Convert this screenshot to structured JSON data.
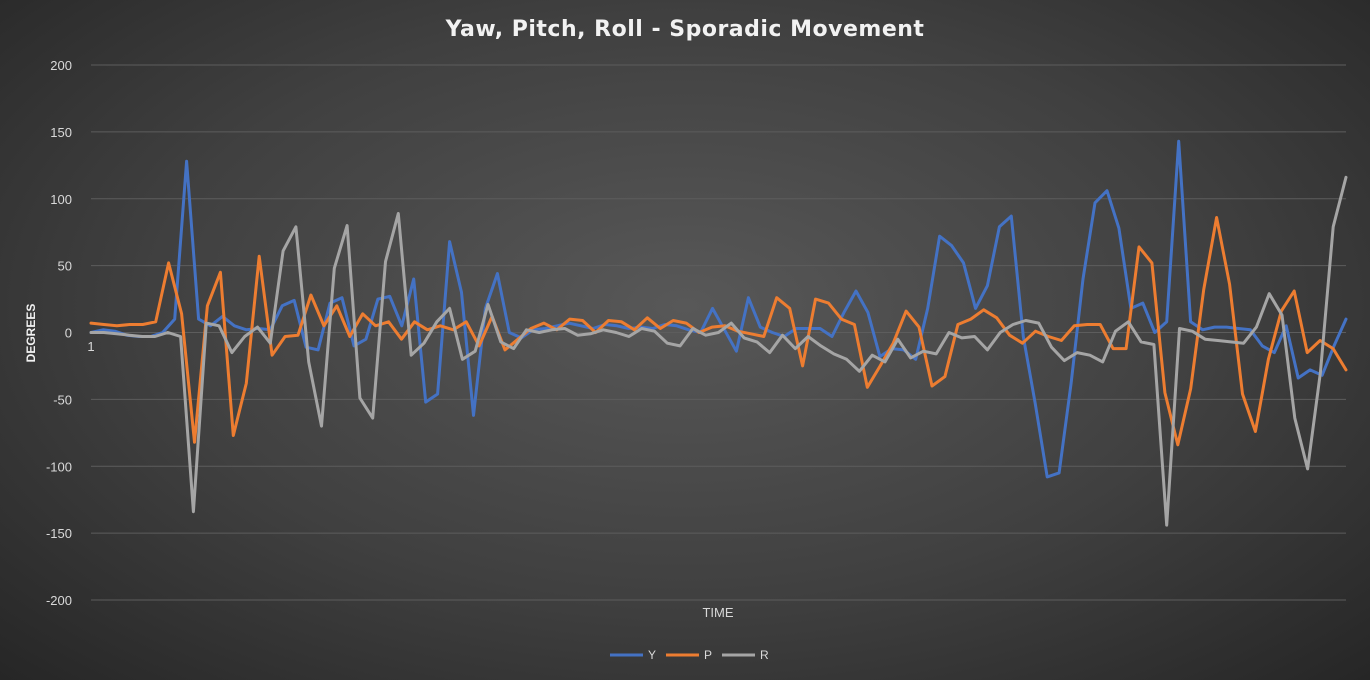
{
  "chart_data": {
    "type": "line",
    "title": "Yaw, Pitch, Roll - Sporadic Movement",
    "xlabel": "TIME",
    "ylabel": "DEGREES",
    "ylim": [
      -200,
      200
    ],
    "yticks": [
      200,
      150,
      100,
      50,
      0,
      -50,
      -100,
      -150,
      -200
    ],
    "x_tick_label": "1",
    "grid": true,
    "legend_position": "bottom",
    "series": [
      {
        "name": "Y",
        "color": "#4472c4",
        "values": [
          0,
          2,
          1,
          -2,
          -3,
          -3,
          0,
          10,
          128,
          10,
          5,
          12,
          5,
          2,
          3,
          2,
          20,
          24,
          -11,
          -13,
          22,
          26,
          -10,
          -5,
          25,
          27,
          5,
          40,
          -52,
          -46,
          68,
          30,
          -62,
          18,
          44,
          0,
          -4,
          2,
          3,
          5,
          7,
          5,
          3,
          6,
          5,
          3,
          4,
          3,
          6,
          5,
          2,
          0,
          18,
          2,
          -14,
          26,
          4,
          0,
          -3,
          3,
          3,
          3,
          -3,
          15,
          31,
          15,
          -18,
          -12,
          -13,
          -20,
          18,
          72,
          65,
          52,
          18,
          35,
          79,
          87,
          -3,
          -53,
          -108,
          -105,
          -38,
          40,
          97,
          106,
          78,
          18,
          22,
          0,
          8,
          143,
          8,
          2,
          4,
          4,
          3,
          2,
          -10,
          -15,
          5,
          -34,
          -28,
          -32,
          -10,
          10
        ]
      },
      {
        "name": "P",
        "color": "#ed7d31",
        "values": [
          7,
          6,
          5,
          6,
          6,
          8,
          52,
          14,
          -82,
          20,
          45,
          -77,
          -38,
          57,
          -17,
          -3,
          -2,
          28,
          5,
          20,
          -3,
          14,
          5,
          8,
          -5,
          8,
          2,
          5,
          2,
          8,
          -10,
          12,
          -13,
          -5,
          3,
          7,
          2,
          10,
          9,
          0,
          9,
          8,
          2,
          11,
          3,
          9,
          7,
          0,
          4,
          5,
          1,
          -1,
          -3,
          26,
          18,
          -25,
          25,
          22,
          10,
          6,
          -41,
          -25,
          -8,
          16,
          4,
          -40,
          -33,
          6,
          10,
          17,
          11,
          -2,
          -8,
          1,
          -3,
          -6,
          5,
          6,
          6,
          -12,
          -12,
          64,
          52,
          -45,
          -84,
          -42,
          32,
          86,
          36,
          -46,
          -74,
          -20,
          16,
          31,
          -15,
          -6,
          -12,
          -28
        ]
      },
      {
        "name": "R",
        "color": "#a5a5a5",
        "values": [
          0,
          0,
          -1,
          -2,
          -3,
          -3,
          0,
          -3,
          -134,
          7,
          5,
          -15,
          -3,
          4,
          -8,
          61,
          79,
          -22,
          -70,
          48,
          80,
          -49,
          -64,
          53,
          89,
          -17,
          -8,
          8,
          18,
          -20,
          -14,
          21,
          -7,
          -12,
          2,
          0,
          2,
          3,
          -2,
          -1,
          2,
          0,
          -3,
          3,
          1,
          -8,
          -10,
          3,
          -2,
          0,
          7,
          -4,
          -7,
          -15,
          -2,
          -12,
          -3,
          -10,
          -16,
          -20,
          -29,
          -17,
          -22,
          -5,
          -19,
          -14,
          -16,
          0,
          -4,
          -3,
          -13,
          0,
          6,
          9,
          7,
          -11,
          -21,
          -15,
          -17,
          -22,
          1,
          8,
          -7,
          -9,
          -144,
          3,
          1,
          -5,
          -6,
          -7,
          -8,
          4,
          29,
          13,
          -64,
          -102,
          -30,
          79,
          116
        ]
      }
    ]
  }
}
